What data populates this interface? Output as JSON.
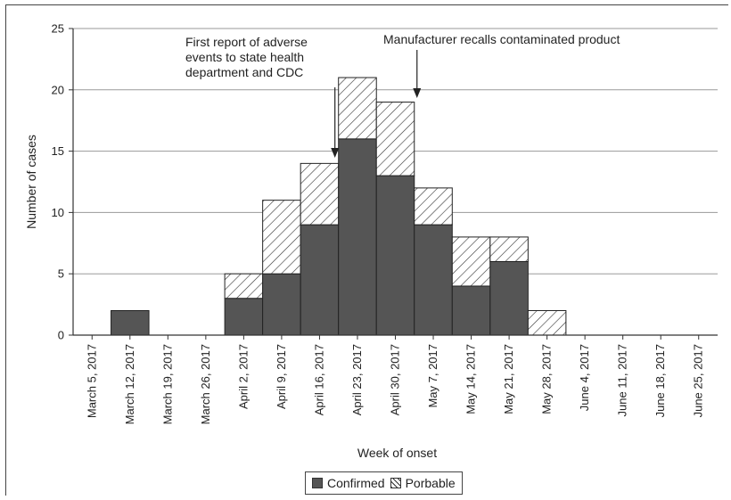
{
  "chart_data": {
    "type": "bar",
    "stacked": true,
    "xlabel": "Week of onset",
    "ylabel": "Number of cases",
    "ylim": [
      0,
      25
    ],
    "yticks": [
      0,
      5,
      10,
      15,
      20,
      25
    ],
    "grid": true,
    "legend_position": "bottom",
    "categories": [
      "March 5, 2017",
      "March 12, 2017",
      "March 19, 2017",
      "March 26, 2017",
      "April 2, 2017",
      "April 9, 2017",
      "April 16, 2017",
      "April 23, 2017",
      "April 30, 2017",
      "May 7, 2017",
      "May 14, 2017",
      "May 21, 2017",
      "May 28, 2017",
      "June 4, 2017",
      "June 11, 2017",
      "June 18, 2017",
      "June 25, 2017"
    ],
    "series": [
      {
        "name": "Confirmed",
        "values": [
          0,
          2,
          0,
          0,
          3,
          5,
          9,
          16,
          13,
          9,
          4,
          6,
          0,
          0,
          0,
          0,
          0
        ],
        "color": "#555555",
        "pattern": "solid"
      },
      {
        "name": "Porbable",
        "values": [
          0,
          0,
          0,
          0,
          2,
          6,
          5,
          5,
          6,
          3,
          4,
          2,
          2,
          0,
          0,
          0,
          0
        ],
        "color": "#ffffff",
        "pattern": "hatch"
      }
    ],
    "annotations": [
      {
        "lines": [
          "First report of adverse",
          "events to state health",
          "department and CDC"
        ],
        "category": "April 16, 2017",
        "arrow": "down"
      },
      {
        "lines": [
          "Manufacturer recalls contaminated product"
        ],
        "category": "April 30, 2017",
        "arrow": "down"
      }
    ]
  },
  "legend": {
    "confirmed_label": "Confirmed",
    "probable_label": "Porbable"
  }
}
